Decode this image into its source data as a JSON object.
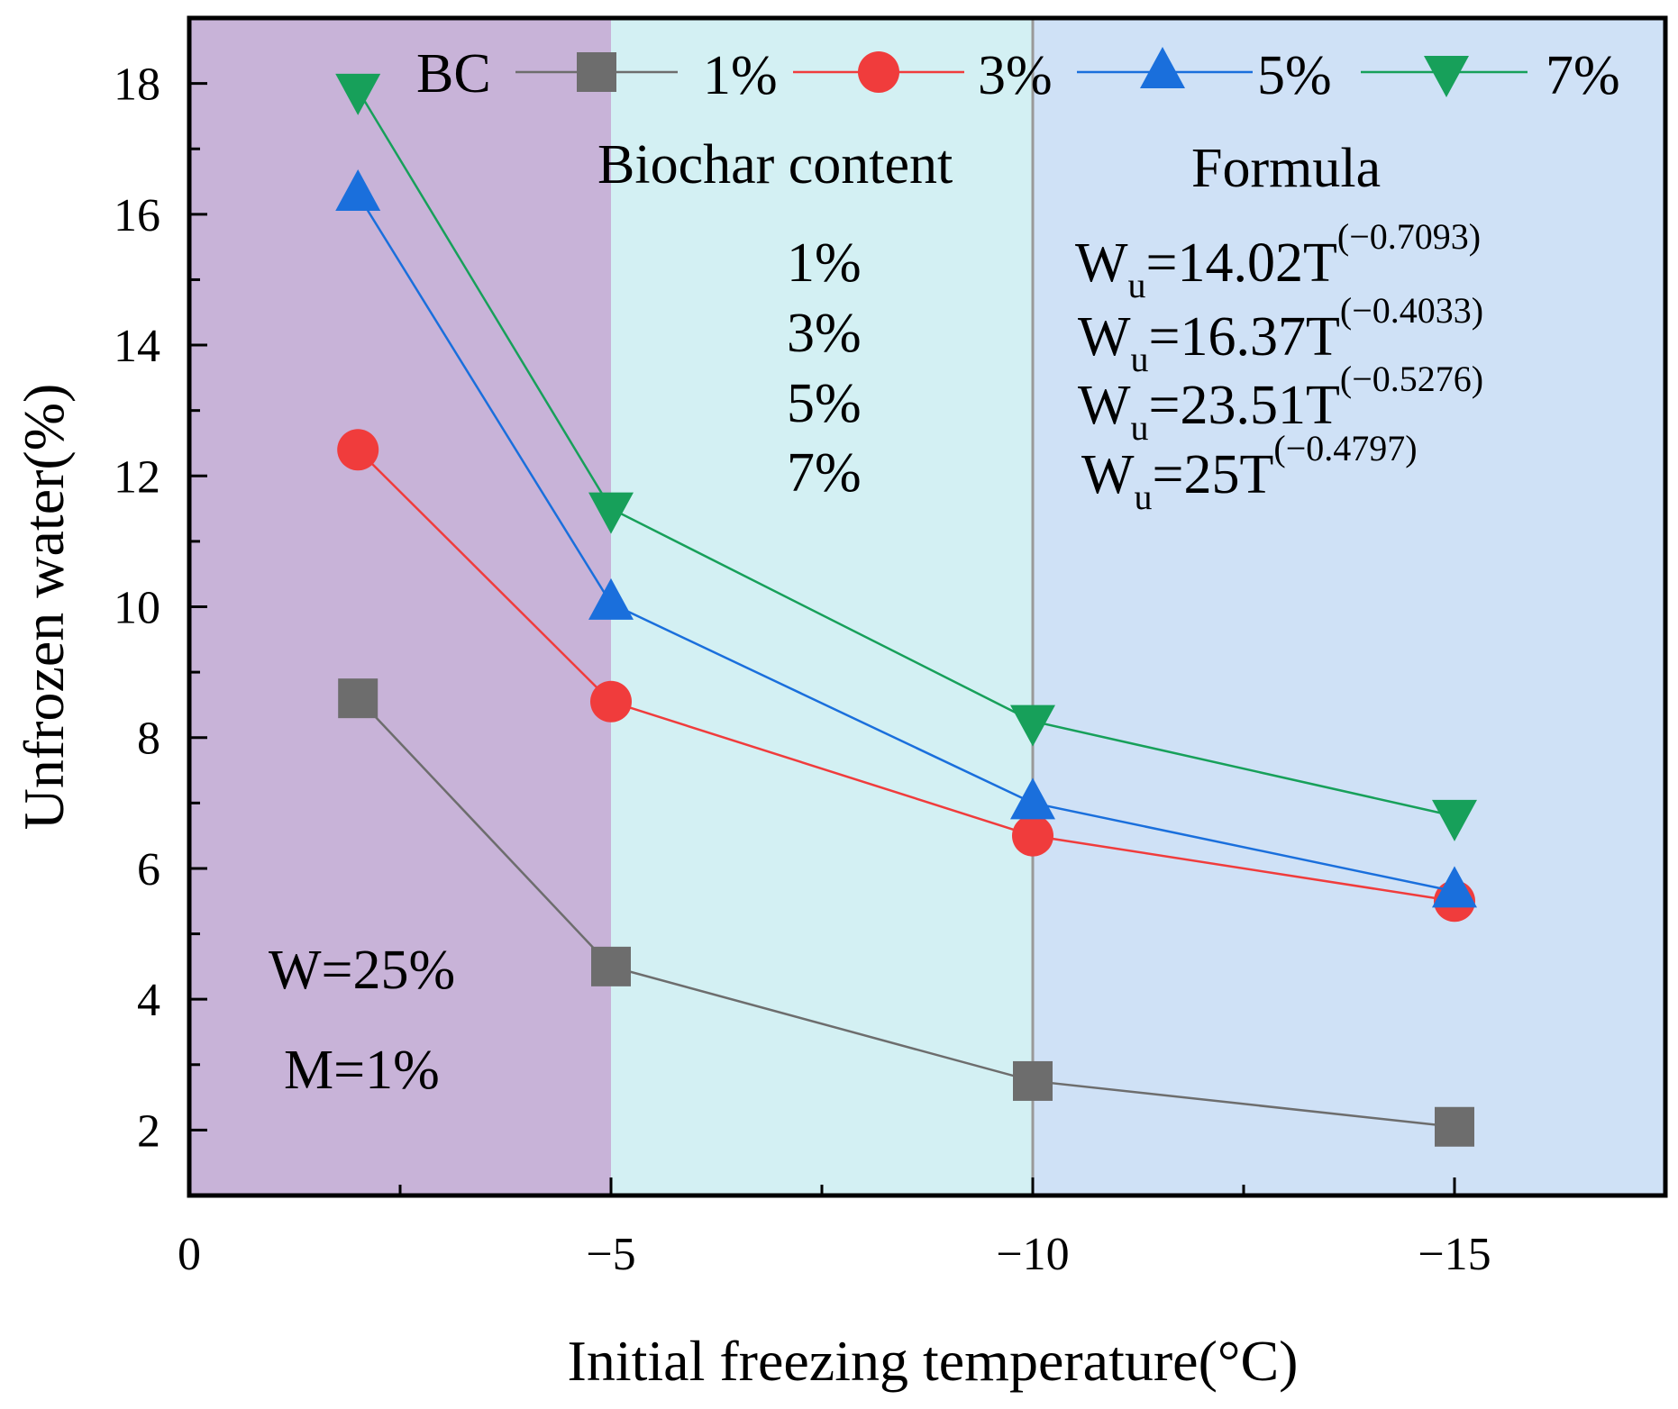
{
  "chart_data": {
    "type": "line",
    "x": [
      -2,
      -5,
      -10,
      -15
    ],
    "xlim": [
      0,
      -17.5
    ],
    "ylim": [
      1,
      19
    ],
    "xticks": [
      0,
      -5,
      -10,
      -15
    ],
    "xtick_labels": [
      "0",
      "−5",
      "−10",
      "−15"
    ],
    "yticks": [
      2,
      4,
      6,
      8,
      10,
      12,
      14,
      16,
      18
    ],
    "ytick_labels": [
      "2",
      "4",
      "6",
      "8",
      "10",
      "12",
      "14",
      "16",
      "18"
    ],
    "xlabel": "Initial freezing temperature(°C)",
    "ylabel": "Unfrozen water(%)",
    "series": [
      {
        "name": "1%",
        "values": [
          8.6,
          4.5,
          2.75,
          2.05
        ],
        "color": "#6d6d6d",
        "marker": "square"
      },
      {
        "name": "3%",
        "values": [
          12.4,
          8.55,
          6.5,
          5.5
        ],
        "color": "#f03c3c",
        "marker": "circle"
      },
      {
        "name": "5%",
        "values": [
          16.3,
          10.05,
          7.0,
          5.65
        ],
        "color": "#1a6fdc",
        "marker": "triangle-up"
      },
      {
        "name": "7%",
        "values": [
          17.9,
          11.5,
          8.25,
          6.8
        ],
        "color": "#17a05a",
        "marker": "triangle-down"
      }
    ],
    "bands": [
      {
        "from": 0,
        "to": -5,
        "color": "#c8b3d8"
      },
      {
        "from": -5,
        "to": -10,
        "color": "#d3f0f3"
      },
      {
        "from": -10,
        "to": -17.5,
        "color": "#cfe1f6"
      }
    ],
    "vline_x": -10,
    "vline_color": "#999999",
    "legend": {
      "title": "BC",
      "placement": "top"
    },
    "annotations": {
      "biochar_header": "Biochar content",
      "formula_header": "Formula",
      "contents": [
        "1%",
        "3%",
        "5%",
        "7%"
      ],
      "formulas": [
        {
          "base": "W",
          "sub": "u",
          "mid": "=14.02T",
          "sup": "(−0.7093)"
        },
        {
          "base": "W",
          "sub": "u",
          "mid": "=16.37T",
          "sup": "(−0.4033)"
        },
        {
          "base": "W",
          "sub": "u",
          "mid": "=23.51T",
          "sup": "(−0.5276)"
        },
        {
          "base": "W",
          "sub": "u",
          "mid": "=25T",
          "sup": "(−0.4797)"
        }
      ],
      "w_label": "W=25%",
      "m_label": "M=1%"
    }
  }
}
